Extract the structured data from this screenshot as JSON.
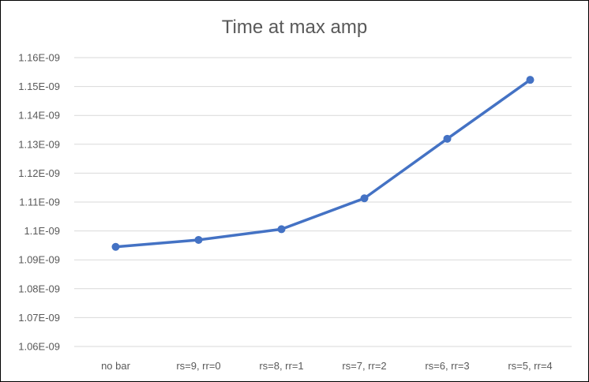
{
  "chart_data": {
    "type": "line",
    "title": "Time at max amp",
    "xlabel": "",
    "ylabel": "",
    "categories": [
      "no bar",
      "rs=9, rr=0",
      "rs=8, rr=1",
      "rs=7, rr=2",
      "rs=6, rr=3",
      "rs=5, rr=4"
    ],
    "series": [
      {
        "values": [
          1.0945e-09,
          1.0969e-09,
          1.1006e-09,
          1.1113e-09,
          1.1319e-09,
          1.1523e-09
        ],
        "color": "#4472C4"
      }
    ],
    "ylim": [
      1.06e-09,
      1.16e-09
    ],
    "y_ticks": [
      1.06e-09,
      1.07e-09,
      1.08e-09,
      1.09e-09,
      1.1e-09,
      1.11e-09,
      1.12e-09,
      1.13e-09,
      1.14e-09,
      1.15e-09,
      1.16e-09
    ],
    "y_tick_labels": [
      "1.06E-09",
      "1.07E-09",
      "1.08E-09",
      "1.09E-09",
      "1.1E-09",
      "1.11E-09",
      "1.12E-09",
      "1.13E-09",
      "1.14E-09",
      "1.15E-09",
      "1.16E-09"
    ],
    "grid": true,
    "gridline_color": "#D9D9D9",
    "legend": "none"
  }
}
